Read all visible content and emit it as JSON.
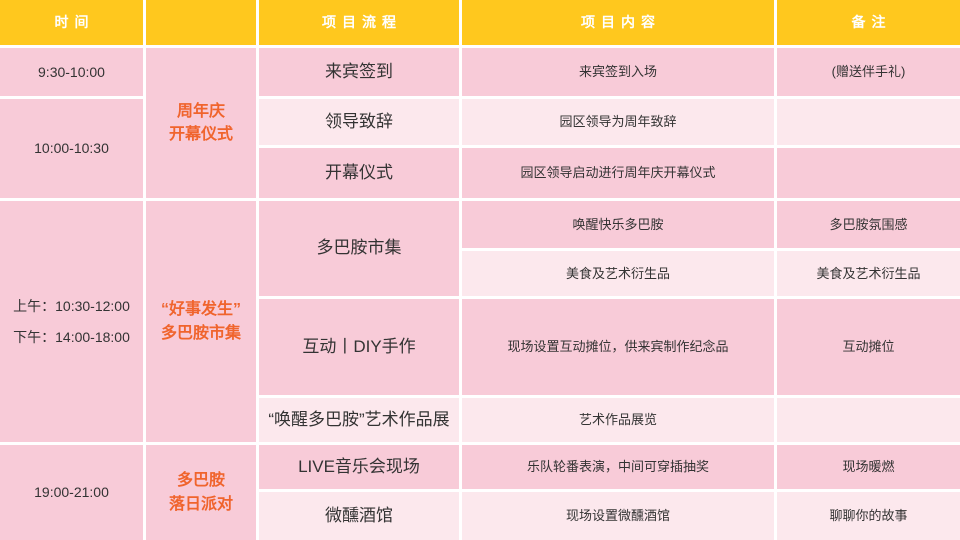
{
  "palette": {
    "header_bg": "#FFC81E",
    "header_text": "#FFFFFF",
    "row_dark": "#F8CBD8",
    "row_light": "#FCE8ED",
    "accent_text": "#F0642D",
    "body_text": "#333333"
  },
  "table": {
    "headers": {
      "time": "时间",
      "category": "",
      "flow": "项目流程",
      "content": "项目内容",
      "notes": "备注"
    },
    "times": [
      {
        "label": "9:30-10:00"
      },
      {
        "label": "10:00-10:30"
      },
      {
        "line1": "上午：10:30-12:00",
        "line2": "下午：14:00-18:00"
      },
      {
        "label": "19:00-21:00"
      }
    ],
    "categories": [
      {
        "line1": "周年庆",
        "line2": "开幕仪式"
      },
      {
        "line1": "“好事发生”",
        "line2": "多巴胺市集"
      },
      {
        "line1": "多巴胺",
        "line2": "落日派对"
      }
    ],
    "rows": [
      {
        "flow": "来宾签到",
        "content": "来宾签到入场",
        "notes": "(赠送伴手礼)"
      },
      {
        "flow": "领导致辞",
        "content": "园区领导为周年致辞",
        "notes": ""
      },
      {
        "flow": "开幕仪式",
        "content": "园区领导启动进行周年庆开幕仪式",
        "notes": ""
      },
      {
        "flow": "多巴胺市集",
        "content": "唤醒快乐多巴胺",
        "notes": "多巴胺氛围感"
      },
      {
        "flow": "",
        "content": "美食及艺术衍生品",
        "notes": "美食及艺术衍生品"
      },
      {
        "flow": "互动丨DIY手作",
        "content": "现场设置互动摊位，供来宾制作纪念品",
        "notes": "互动摊位"
      },
      {
        "flow": "“唤醒多巴胺”艺术作品展",
        "content": "艺术作品展览",
        "notes": ""
      },
      {
        "flow": "LIVE音乐会现场",
        "content": "乐队轮番表演，中间可穿插抽奖",
        "notes": "现场暖燃"
      },
      {
        "flow": "微醺酒馆",
        "content": "现场设置微醺酒馆",
        "notes": "聊聊你的故事"
      }
    ]
  }
}
